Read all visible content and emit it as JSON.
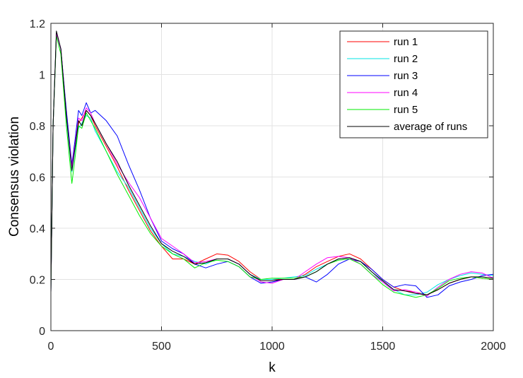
{
  "chart_data": {
    "type": "line",
    "title": "",
    "xlabel": "k",
    "ylabel": "Consensus violation",
    "xlim": [
      0,
      2000
    ],
    "ylim": [
      0,
      1.2
    ],
    "xticks": [
      0,
      500,
      1000,
      1500,
      2000
    ],
    "xtick_labels": [
      "0",
      "500",
      "1000",
      "1500",
      "2000"
    ],
    "yticks": [
      0,
      0.2,
      0.4,
      0.6,
      0.8,
      1.0,
      1.2
    ],
    "ytick_labels": [
      "0",
      "0.2",
      "0.4",
      "0.6",
      "0.8",
      "1",
      "1.2"
    ],
    "grid": true,
    "legend_position": "top-right",
    "series": [
      {
        "name": "run 1",
        "color": "#ff0000",
        "x": [
          0,
          10,
          25,
          45,
          70,
          95,
          110,
          125,
          140,
          160,
          180,
          200,
          250,
          300,
          350,
          400,
          450,
          500,
          550,
          600,
          650,
          700,
          750,
          800,
          850,
          900,
          950,
          1000,
          1050,
          1100,
          1150,
          1200,
          1250,
          1300,
          1350,
          1400,
          1450,
          1500,
          1550,
          1600,
          1650,
          1700,
          1750,
          1800,
          1850,
          1900,
          1950,
          2000
        ],
        "y": [
          0.15,
          0.8,
          1.16,
          1.1,
          0.85,
          0.63,
          0.72,
          0.81,
          0.83,
          0.86,
          0.84,
          0.8,
          0.72,
          0.64,
          0.55,
          0.47,
          0.39,
          0.33,
          0.28,
          0.28,
          0.26,
          0.28,
          0.3,
          0.295,
          0.27,
          0.23,
          0.2,
          0.2,
          0.2,
          0.2,
          0.22,
          0.25,
          0.27,
          0.29,
          0.3,
          0.28,
          0.24,
          0.2,
          0.17,
          0.155,
          0.15,
          0.14,
          0.16,
          0.185,
          0.2,
          0.21,
          0.205,
          0.2
        ]
      },
      {
        "name": "run 2",
        "color": "#00e5e5",
        "x": [
          0,
          10,
          25,
          45,
          70,
          95,
          110,
          125,
          140,
          160,
          180,
          200,
          250,
          300,
          350,
          400,
          450,
          500,
          550,
          600,
          650,
          700,
          750,
          800,
          850,
          900,
          950,
          1000,
          1050,
          1100,
          1150,
          1200,
          1250,
          1300,
          1350,
          1400,
          1450,
          1500,
          1550,
          1600,
          1650,
          1700,
          1750,
          1800,
          1850,
          1900,
          1950,
          2000
        ],
        "y": [
          0.15,
          0.8,
          1.16,
          1.1,
          0.83,
          0.62,
          0.71,
          0.79,
          0.81,
          0.84,
          0.83,
          0.78,
          0.7,
          0.62,
          0.56,
          0.48,
          0.4,
          0.34,
          0.3,
          0.29,
          0.27,
          0.26,
          0.28,
          0.28,
          0.26,
          0.22,
          0.2,
          0.2,
          0.205,
          0.21,
          0.215,
          0.24,
          0.26,
          0.28,
          0.285,
          0.27,
          0.23,
          0.19,
          0.16,
          0.14,
          0.14,
          0.15,
          0.18,
          0.2,
          0.215,
          0.225,
          0.22,
          0.215
        ]
      },
      {
        "name": "run 3",
        "color": "#0000ff",
        "x": [
          0,
          10,
          25,
          45,
          70,
          95,
          110,
          125,
          140,
          160,
          180,
          200,
          250,
          300,
          350,
          400,
          450,
          500,
          550,
          600,
          650,
          700,
          750,
          800,
          850,
          900,
          950,
          1000,
          1050,
          1100,
          1150,
          1200,
          1250,
          1300,
          1350,
          1400,
          1450,
          1500,
          1550,
          1600,
          1650,
          1700,
          1750,
          1800,
          1850,
          1900,
          1950,
          2000
        ],
        "y": [
          0.15,
          0.8,
          1.16,
          1.1,
          0.86,
          0.65,
          0.75,
          0.86,
          0.84,
          0.89,
          0.85,
          0.86,
          0.82,
          0.76,
          0.65,
          0.55,
          0.44,
          0.35,
          0.32,
          0.3,
          0.26,
          0.245,
          0.26,
          0.27,
          0.25,
          0.21,
          0.185,
          0.19,
          0.2,
          0.2,
          0.21,
          0.19,
          0.22,
          0.26,
          0.28,
          0.27,
          0.24,
          0.2,
          0.17,
          0.18,
          0.175,
          0.13,
          0.14,
          0.175,
          0.19,
          0.2,
          0.215,
          0.22
        ]
      },
      {
        "name": "run 4",
        "color": "#ff00ff",
        "x": [
          0,
          10,
          25,
          45,
          70,
          95,
          110,
          125,
          140,
          160,
          180,
          200,
          250,
          300,
          350,
          400,
          450,
          500,
          550,
          600,
          650,
          700,
          750,
          800,
          850,
          900,
          950,
          1000,
          1050,
          1100,
          1150,
          1200,
          1250,
          1300,
          1350,
          1400,
          1450,
          1500,
          1550,
          1600,
          1650,
          1700,
          1750,
          1800,
          1850,
          1900,
          1950,
          2000
        ],
        "y": [
          0.15,
          0.8,
          1.16,
          1.1,
          0.84,
          0.64,
          0.73,
          0.83,
          0.82,
          0.87,
          0.85,
          0.81,
          0.73,
          0.65,
          0.58,
          0.52,
          0.44,
          0.36,
          0.33,
          0.3,
          0.265,
          0.27,
          0.28,
          0.28,
          0.26,
          0.22,
          0.19,
          0.185,
          0.2,
          0.2,
          0.23,
          0.26,
          0.285,
          0.29,
          0.285,
          0.26,
          0.22,
          0.19,
          0.155,
          0.16,
          0.15,
          0.135,
          0.17,
          0.2,
          0.22,
          0.23,
          0.225,
          0.205
        ]
      },
      {
        "name": "run 5",
        "color": "#00ee00",
        "x": [
          0,
          10,
          25,
          45,
          70,
          95,
          110,
          125,
          140,
          160,
          180,
          200,
          250,
          300,
          350,
          400,
          450,
          500,
          550,
          600,
          650,
          700,
          750,
          800,
          850,
          900,
          950,
          1000,
          1050,
          1100,
          1150,
          1200,
          1250,
          1300,
          1350,
          1400,
          1450,
          1500,
          1550,
          1600,
          1650,
          1700,
          1750,
          1800,
          1850,
          1900,
          1950,
          2000
        ],
        "y": [
          0.15,
          0.8,
          1.15,
          1.08,
          0.8,
          0.575,
          0.68,
          0.8,
          0.79,
          0.85,
          0.82,
          0.79,
          0.7,
          0.61,
          0.53,
          0.45,
          0.38,
          0.33,
          0.3,
          0.28,
          0.245,
          0.265,
          0.275,
          0.27,
          0.25,
          0.21,
          0.2,
          0.205,
          0.205,
          0.205,
          0.21,
          0.23,
          0.26,
          0.275,
          0.28,
          0.26,
          0.22,
          0.18,
          0.15,
          0.14,
          0.13,
          0.14,
          0.165,
          0.195,
          0.205,
          0.21,
          0.205,
          0.2
        ]
      },
      {
        "name": "average of runs",
        "color": "#000000",
        "x": [
          0,
          10,
          25,
          45,
          70,
          95,
          110,
          125,
          140,
          160,
          180,
          200,
          250,
          300,
          350,
          400,
          450,
          500,
          550,
          600,
          650,
          700,
          750,
          800,
          850,
          900,
          950,
          1000,
          1050,
          1100,
          1150,
          1200,
          1250,
          1300,
          1350,
          1400,
          1450,
          1500,
          1550,
          1600,
          1650,
          1700,
          1750,
          1800,
          1850,
          1900,
          1950,
          2000
        ],
        "y": [
          0.15,
          0.8,
          1.17,
          1.1,
          0.84,
          0.625,
          0.72,
          0.82,
          0.8,
          0.86,
          0.84,
          0.81,
          0.73,
          0.66,
          0.57,
          0.49,
          0.41,
          0.34,
          0.31,
          0.29,
          0.26,
          0.265,
          0.28,
          0.28,
          0.26,
          0.22,
          0.195,
          0.195,
          0.2,
          0.2,
          0.21,
          0.23,
          0.26,
          0.28,
          0.285,
          0.27,
          0.23,
          0.195,
          0.16,
          0.155,
          0.145,
          0.14,
          0.16,
          0.185,
          0.2,
          0.21,
          0.21,
          0.205
        ]
      }
    ]
  }
}
